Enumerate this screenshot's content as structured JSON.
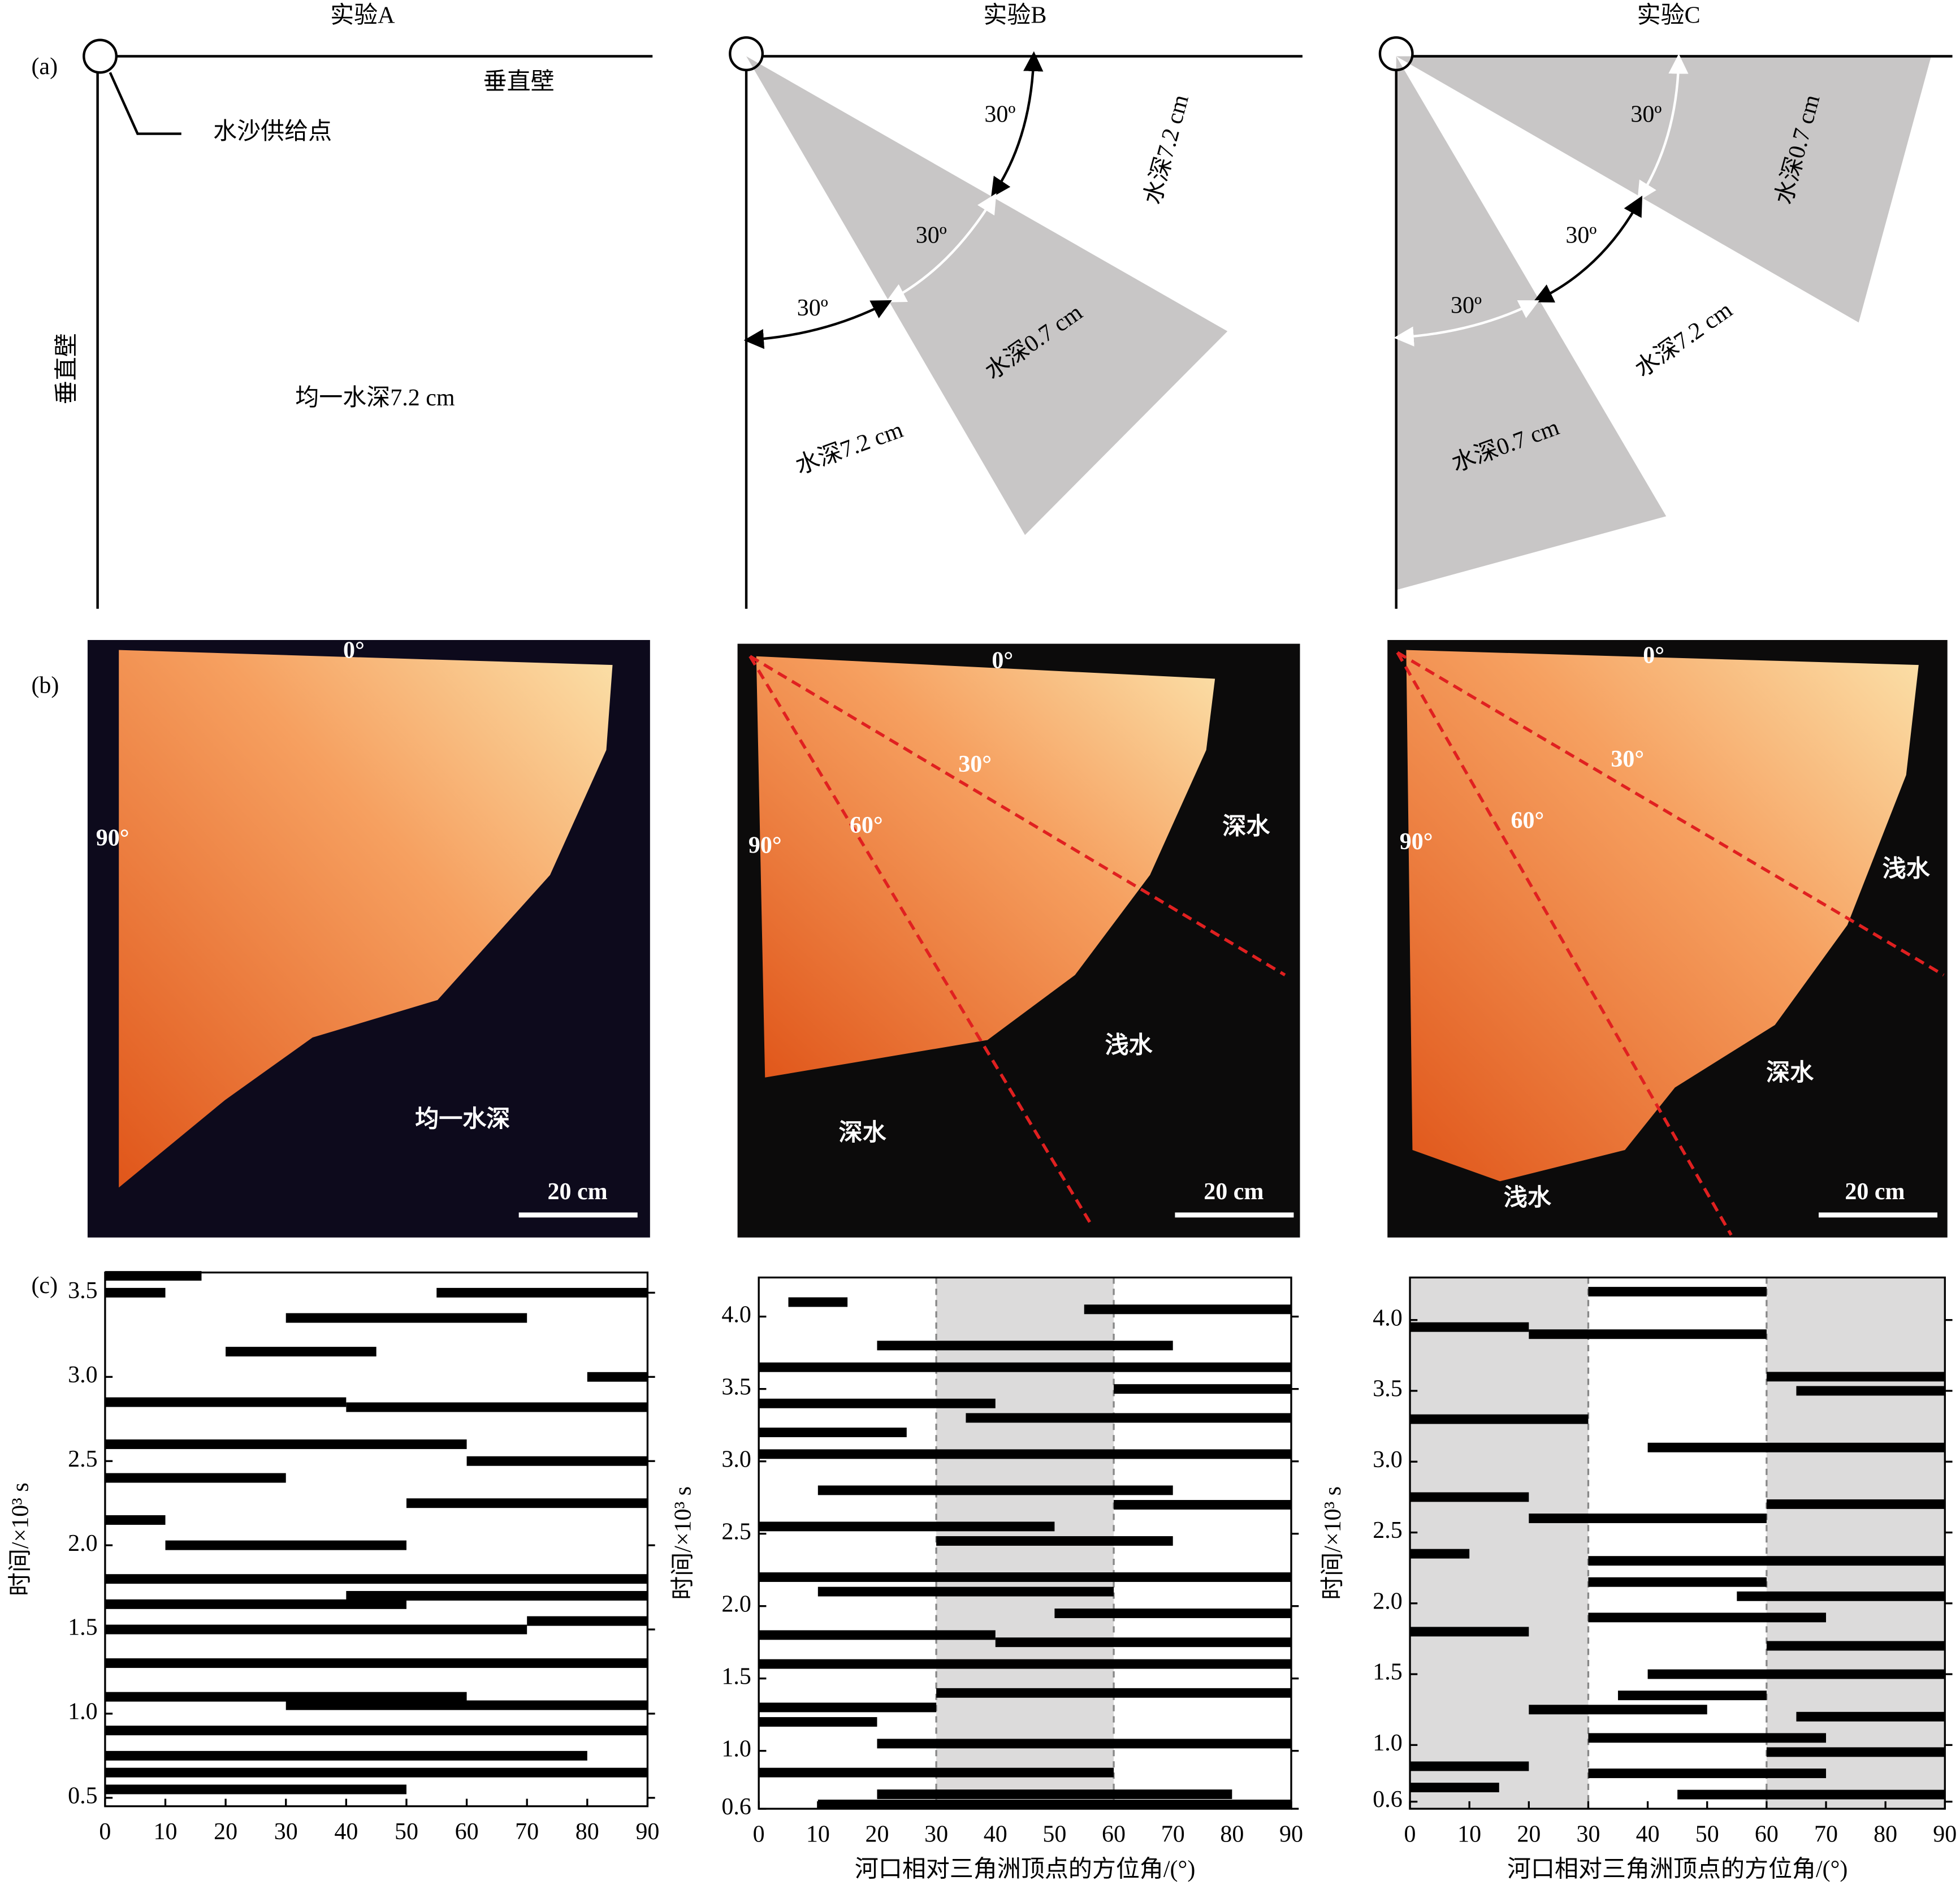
{
  "panel_labels": [
    "(a)",
    "(b)",
    "(c)"
  ],
  "experiments": [
    "实验A",
    "实验B",
    "实验C"
  ],
  "diagrams": [
    {
      "texts": [
        "垂直壁",
        "水沙供给点",
        "垂直壁",
        "均一水深7.2 cm"
      ]
    },
    {
      "texts": [
        "30º",
        "水深7.2 cm",
        "30º",
        "30º",
        "水深0.7 cm",
        "水深7.2 cm"
      ]
    },
    {
      "texts": [
        "30º",
        "水深0.7 cm",
        "30º",
        "30º",
        "水深7.2 cm",
        "水深0.7 cm"
      ]
    }
  ],
  "photos": [
    {
      "labels": [
        "0°",
        "90°",
        "均一水深"
      ],
      "scale_bar": "20 cm"
    },
    {
      "labels": [
        "0°",
        "30°",
        "60°",
        "90°",
        "深水",
        "浅水",
        "深水"
      ],
      "scale_bar": "20 cm"
    },
    {
      "labels": [
        "0°",
        "30°",
        "60°",
        "90°",
        "浅水",
        "深水",
        "浅水"
      ],
      "scale_bar": "20 cm"
    }
  ],
  "chart_data": [
    {
      "type": "segments",
      "color": "#000000",
      "xlabel": "",
      "ylabel": "时间/×10³ s",
      "xlim": [
        0,
        90
      ],
      "xticks": [
        0,
        10,
        20,
        30,
        40,
        50,
        60,
        70,
        80,
        90
      ],
      "ylim": [
        0.45,
        3.62
      ],
      "yticks": [
        0.5,
        {
          "value": 1,
          "label": "1.0"
        },
        1.5,
        {
          "value": 2,
          "label": "2.0"
        },
        2.5,
        {
          "value": 3,
          "label": "3.0"
        },
        3.5
      ],
      "shaded": [],
      "segments": [
        [
          0,
          16,
          3.6
        ],
        [
          0,
          10,
          3.5
        ],
        [
          55,
          90,
          3.5
        ],
        [
          30,
          70,
          3.35
        ],
        [
          20,
          45,
          3.15
        ],
        [
          80,
          90,
          3.0
        ],
        [
          0,
          40,
          2.85
        ],
        [
          40,
          90,
          2.82
        ],
        [
          0,
          60,
          2.6
        ],
        [
          60,
          90,
          2.5
        ],
        [
          0,
          30,
          2.4
        ],
        [
          50,
          90,
          2.25
        ],
        [
          0,
          10,
          2.15
        ],
        [
          10,
          50,
          2.0
        ],
        [
          0,
          90,
          1.8
        ],
        [
          40,
          90,
          1.7
        ],
        [
          0,
          50,
          1.65
        ],
        [
          70,
          90,
          1.55
        ],
        [
          0,
          70,
          1.5
        ],
        [
          0,
          90,
          1.3
        ],
        [
          0,
          60,
          1.1
        ],
        [
          30,
          90,
          1.05
        ],
        [
          0,
          90,
          0.9
        ],
        [
          0,
          80,
          0.75
        ],
        [
          0,
          90,
          0.65
        ],
        [
          0,
          50,
          0.55
        ]
      ]
    },
    {
      "type": "segments",
      "color": "#000000",
      "xlabel": "河口相对三角洲顶点的方位角/(°)",
      "ylabel": "时间/×10³ s",
      "xlim": [
        0,
        90
      ],
      "xticks": [
        0,
        10,
        20,
        30,
        40,
        50,
        60,
        70,
        80,
        90
      ],
      "ylim": [
        0.6,
        4.27
      ],
      "yticks": [
        0.6,
        {
          "value": 1,
          "label": "1.0"
        },
        1.5,
        {
          "value": 2,
          "label": "2.0"
        },
        2.5,
        {
          "value": 3,
          "label": "3.0"
        },
        3.5,
        {
          "value": 4,
          "label": "4.0"
        }
      ],
      "shaded": [
        [
          30,
          60
        ]
      ],
      "segments": [
        [
          5,
          15,
          4.1
        ],
        [
          55,
          90,
          4.05
        ],
        [
          20,
          70,
          3.8
        ],
        [
          0,
          90,
          3.65
        ],
        [
          60,
          90,
          3.5
        ],
        [
          0,
          40,
          3.4
        ],
        [
          35,
          90,
          3.3
        ],
        [
          0,
          25,
          3.2
        ],
        [
          0,
          90,
          3.05
        ],
        [
          10,
          70,
          2.8
        ],
        [
          60,
          90,
          2.7
        ],
        [
          0,
          50,
          2.55
        ],
        [
          30,
          70,
          2.45
        ],
        [
          0,
          90,
          2.2
        ],
        [
          10,
          60,
          2.1
        ],
        [
          50,
          90,
          1.95
        ],
        [
          0,
          40,
          1.8
        ],
        [
          40,
          90,
          1.75
        ],
        [
          0,
          90,
          1.6
        ],
        [
          30,
          90,
          1.4
        ],
        [
          0,
          30,
          1.3
        ],
        [
          0,
          20,
          1.2
        ],
        [
          20,
          90,
          1.05
        ],
        [
          0,
          60,
          0.85
        ],
        [
          20,
          80,
          0.7
        ],
        [
          10,
          90,
          0.63
        ]
      ]
    },
    {
      "type": "segments",
      "color": "#000000",
      "xlabel": "河口相对三角洲顶点的方位角/(°)",
      "ylabel": "时间/×10³ s",
      "xlim": [
        0,
        90
      ],
      "xticks": [
        0,
        10,
        20,
        30,
        40,
        50,
        60,
        70,
        80,
        90
      ],
      "ylim": [
        0.55,
        4.3
      ],
      "yticks": [
        0.6,
        {
          "value": 1,
          "label": "1.0"
        },
        1.5,
        {
          "value": 2,
          "label": "2.0"
        },
        2.5,
        {
          "value": 3,
          "label": "3.0"
        },
        3.5,
        {
          "value": 4,
          "label": "4.0"
        }
      ],
      "shaded": [
        [
          0,
          30
        ],
        [
          60,
          90
        ]
      ],
      "segments": [
        [
          30,
          60,
          4.2
        ],
        [
          0,
          20,
          3.95
        ],
        [
          20,
          60,
          3.9
        ],
        [
          60,
          90,
          3.6
        ],
        [
          65,
          90,
          3.5
        ],
        [
          0,
          30,
          3.3
        ],
        [
          40,
          90,
          3.1
        ],
        [
          0,
          20,
          2.75
        ],
        [
          60,
          90,
          2.7
        ],
        [
          20,
          60,
          2.6
        ],
        [
          0,
          10,
          2.35
        ],
        [
          30,
          90,
          2.3
        ],
        [
          30,
          60,
          2.15
        ],
        [
          55,
          90,
          2.05
        ],
        [
          30,
          70,
          1.9
        ],
        [
          0,
          20,
          1.8
        ],
        [
          60,
          90,
          1.7
        ],
        [
          40,
          90,
          1.5
        ],
        [
          35,
          60,
          1.35
        ],
        [
          20,
          50,
          1.25
        ],
        [
          65,
          90,
          1.2
        ],
        [
          30,
          70,
          1.05
        ],
        [
          60,
          90,
          0.95
        ],
        [
          0,
          20,
          0.85
        ],
        [
          30,
          70,
          0.8
        ],
        [
          0,
          15,
          0.7
        ],
        [
          45,
          90,
          0.65
        ]
      ]
    }
  ]
}
